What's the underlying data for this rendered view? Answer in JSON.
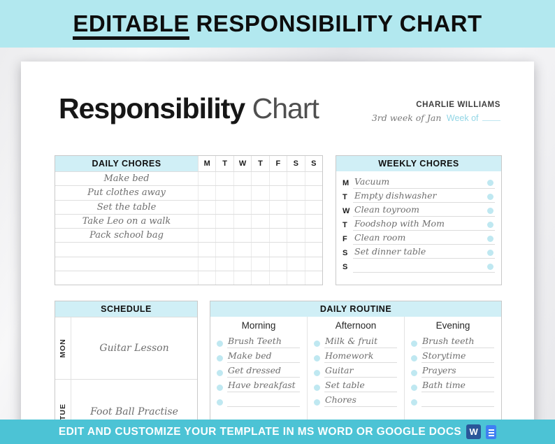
{
  "colors": {
    "top_banner_bg": "#b2e8ef",
    "bottom_banner_bg": "#4cc3d5",
    "section_header_bg": "#d0eff6",
    "check_circle": "#bfe8f1",
    "word_icon_blue": "#2a5699",
    "docs_icon_blue": "#3f7ff2"
  },
  "top_banner": {
    "title_underlined": "EDITABLE",
    "title_rest": " RESPONSIBILITY CHART"
  },
  "page": {
    "title_bold": "Responsibility",
    "title_light": " Chart",
    "name": "CHARLIE WILLIAMS",
    "week_value": "3rd week of Jan",
    "week_label": "Week of"
  },
  "daily_chores": {
    "header": "DAILY CHORES",
    "day_letters": [
      "M",
      "T",
      "W",
      "T",
      "F",
      "S",
      "S"
    ],
    "rows": [
      "Make bed",
      "Put clothes away",
      "Set the table",
      "Take Leo on a walk",
      "Pack school bag",
      "",
      "",
      ""
    ]
  },
  "weekly_chores": {
    "header": "WEEKLY CHORES",
    "rows": [
      {
        "day": "M",
        "task": "Vacuum"
      },
      {
        "day": "T",
        "task": "Empty dishwasher"
      },
      {
        "day": "W",
        "task": "Clean toyroom"
      },
      {
        "day": "T",
        "task": "Foodshop with Mom"
      },
      {
        "day": "F",
        "task": "Clean room"
      },
      {
        "day": "S",
        "task": "Set dinner table"
      },
      {
        "day": "S",
        "task": ""
      }
    ]
  },
  "schedule": {
    "header": "SCHEDULE",
    "rows": [
      {
        "day": "MON",
        "activity": "Guitar Lesson"
      },
      {
        "day": "TUE",
        "activity": "Foot Ball Practise"
      }
    ]
  },
  "daily_routine": {
    "header": "DAILY ROUTINE",
    "columns": [
      {
        "title": "Morning",
        "items": [
          "Brush Teeth",
          "Make bed",
          "Get dressed",
          "Have breakfast",
          ""
        ]
      },
      {
        "title": "Afternoon",
        "items": [
          "Milk & fruit",
          "Homework",
          "Guitar",
          "Set table",
          "Chores"
        ]
      },
      {
        "title": "Evening",
        "items": [
          "Brush teeth",
          "Storytime",
          "Prayers",
          "Bath time",
          ""
        ]
      }
    ]
  },
  "bottom_banner": {
    "text": "EDIT AND CUSTOMIZE YOUR TEMPLATE IN MS WORD OR GOOGLE DOCS",
    "word_icon_letter": "W"
  }
}
